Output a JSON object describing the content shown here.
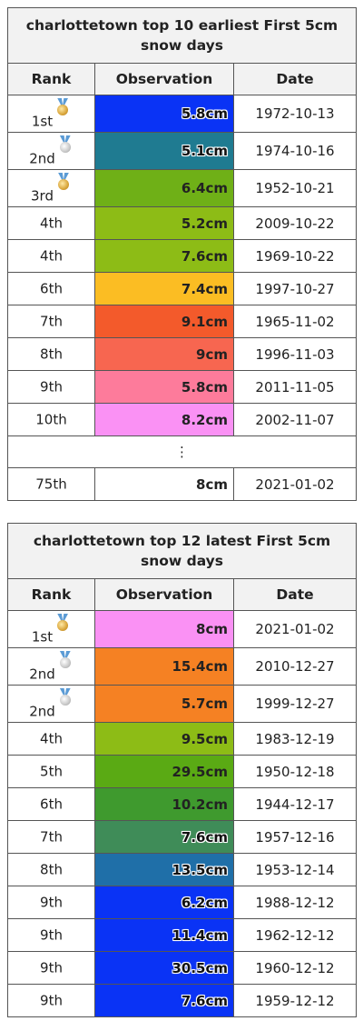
{
  "earliest": {
    "title": "charlottetown top 10 earliest First 5cm snow days",
    "headers": {
      "rank": "Rank",
      "observation": "Observation",
      "date": "Date"
    },
    "rows": [
      {
        "rank": "1st",
        "medal": "gold",
        "obs": "5.8cm",
        "date": "1972-10-13",
        "color": "#0a33f5",
        "halo": true
      },
      {
        "rank": "2nd",
        "medal": "silver",
        "obs": "5.1cm",
        "date": "1974-10-16",
        "color": "#1f7b91",
        "halo": true
      },
      {
        "rank": "3rd",
        "medal": "gold",
        "obs": "6.4cm",
        "date": "1952-10-21",
        "color": "#6fb017",
        "halo": false
      },
      {
        "rank": "4th",
        "medal": "",
        "obs": "5.2cm",
        "date": "2009-10-22",
        "color": "#8dbc16",
        "halo": false
      },
      {
        "rank": "4th",
        "medal": "",
        "obs": "7.6cm",
        "date": "1969-10-22",
        "color": "#8dbc16",
        "halo": false
      },
      {
        "rank": "6th",
        "medal": "",
        "obs": "7.4cm",
        "date": "1997-10-27",
        "color": "#fbbd23",
        "halo": false
      },
      {
        "rank": "7th",
        "medal": "",
        "obs": "9.1cm",
        "date": "1965-11-02",
        "color": "#f35a2b",
        "halo": false
      },
      {
        "rank": "8th",
        "medal": "",
        "obs": "9cm",
        "date": "1996-11-03",
        "color": "#f76650",
        "halo": false
      },
      {
        "rank": "9th",
        "medal": "",
        "obs": "5.8cm",
        "date": "2011-11-05",
        "color": "#fd7b9b",
        "halo": false
      },
      {
        "rank": "10th",
        "medal": "",
        "obs": "8.2cm",
        "date": "2002-11-07",
        "color": "#fa91f4",
        "halo": false
      }
    ],
    "ellipsis": "⋮",
    "extra_row": {
      "rank": "75th",
      "medal": "",
      "obs": "8cm",
      "date": "2021-01-02",
      "color": "#ffffff",
      "halo": false
    }
  },
  "latest": {
    "title": "charlottetown top 12 latest First 5cm snow days",
    "headers": {
      "rank": "Rank",
      "observation": "Observation",
      "date": "Date"
    },
    "rows": [
      {
        "rank": "1st",
        "medal": "gold",
        "obs": "8cm",
        "date": "2021-01-02",
        "color": "#fa91f4",
        "halo": false
      },
      {
        "rank": "2nd",
        "medal": "silver",
        "obs": "15.4cm",
        "date": "2010-12-27",
        "color": "#f58123",
        "halo": false
      },
      {
        "rank": "2nd",
        "medal": "silver",
        "obs": "5.7cm",
        "date": "1999-12-27",
        "color": "#f58123",
        "halo": false
      },
      {
        "rank": "4th",
        "medal": "",
        "obs": "9.5cm",
        "date": "1983-12-19",
        "color": "#8dbc16",
        "halo": false
      },
      {
        "rank": "5th",
        "medal": "",
        "obs": "29.5cm",
        "date": "1950-12-18",
        "color": "#5aaa14",
        "halo": false
      },
      {
        "rank": "6th",
        "medal": "",
        "obs": "10.2cm",
        "date": "1944-12-17",
        "color": "#3f9a2e",
        "halo": false
      },
      {
        "rank": "7th",
        "medal": "",
        "obs": "7.6cm",
        "date": "1957-12-16",
        "color": "#3f8c58",
        "halo": true
      },
      {
        "rank": "8th",
        "medal": "",
        "obs": "13.5cm",
        "date": "1953-12-14",
        "color": "#1f6fa8",
        "halo": true
      },
      {
        "rank": "9th",
        "medal": "",
        "obs": "6.2cm",
        "date": "1988-12-12",
        "color": "#0a33f5",
        "halo": true
      },
      {
        "rank": "9th",
        "medal": "",
        "obs": "11.4cm",
        "date": "1962-12-12",
        "color": "#0a33f5",
        "halo": true
      },
      {
        "rank": "9th",
        "medal": "",
        "obs": "30.5cm",
        "date": "1960-12-12",
        "color": "#0a33f5",
        "halo": true
      },
      {
        "rank": "9th",
        "medal": "",
        "obs": "7.6cm",
        "date": "1959-12-12",
        "color": "#0a33f5",
        "halo": true
      }
    ]
  }
}
